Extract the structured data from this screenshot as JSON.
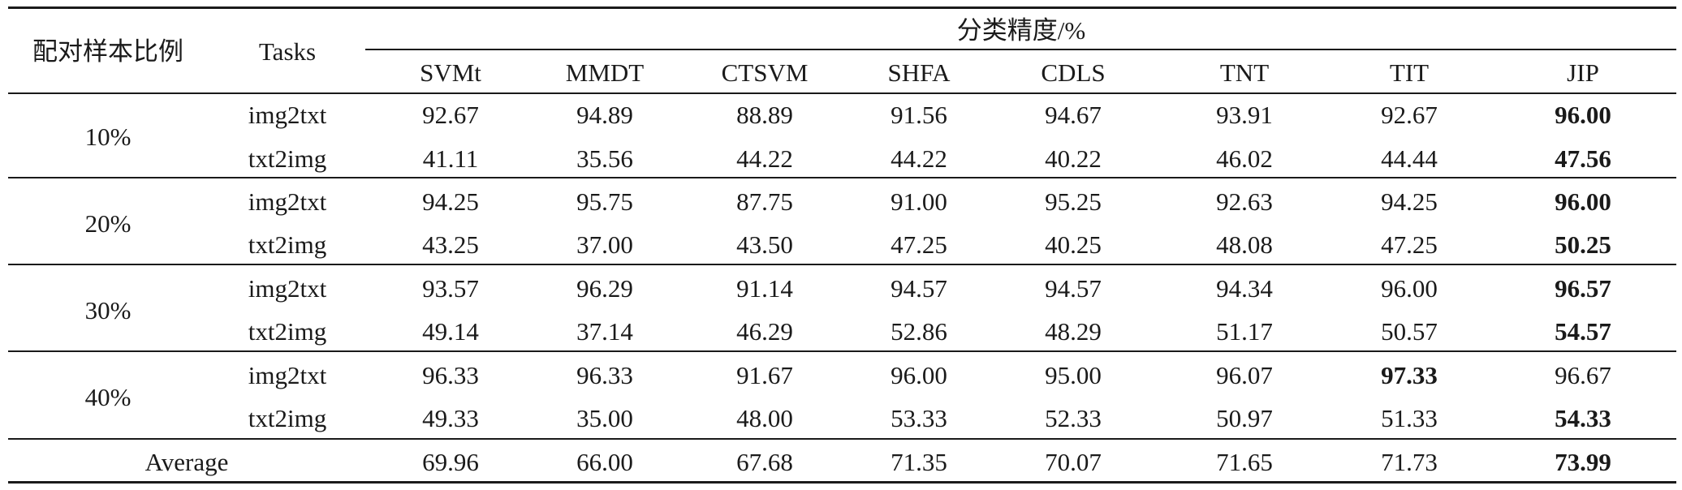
{
  "table": {
    "header": {
      "ratio": "配对样本比例",
      "tasks": "Tasks",
      "group": "分类精度/%",
      "methods": [
        "SVMt",
        "MMDT",
        "CTSVM",
        "SHFA",
        "CDLS",
        "TNT",
        "TIT",
        "JIP"
      ]
    },
    "groups": [
      {
        "ratio": "10%",
        "rows": [
          {
            "task": "img2txt",
            "values": [
              "92.67",
              "94.89",
              "88.89",
              "91.56",
              "94.67",
              "93.91",
              "92.67",
              "96.00"
            ],
            "best": [
              7
            ]
          },
          {
            "task": "txt2img",
            "values": [
              "41.11",
              "35.56",
              "44.22",
              "44.22",
              "40.22",
              "46.02",
              "44.44",
              "47.56"
            ],
            "best": [
              7
            ]
          }
        ]
      },
      {
        "ratio": "20%",
        "rows": [
          {
            "task": "img2txt",
            "values": [
              "94.25",
              "95.75",
              "87.75",
              "91.00",
              "95.25",
              "92.63",
              "94.25",
              "96.00"
            ],
            "best": [
              7
            ]
          },
          {
            "task": "txt2img",
            "values": [
              "43.25",
              "37.00",
              "43.50",
              "47.25",
              "40.25",
              "48.08",
              "47.25",
              "50.25"
            ],
            "best": [
              7
            ]
          }
        ]
      },
      {
        "ratio": "30%",
        "rows": [
          {
            "task": "img2txt",
            "values": [
              "93.57",
              "96.29",
              "91.14",
              "94.57",
              "94.57",
              "94.34",
              "96.00",
              "96.57"
            ],
            "best": [
              7
            ]
          },
          {
            "task": "txt2img",
            "values": [
              "49.14",
              "37.14",
              "46.29",
              "52.86",
              "48.29",
              "51.17",
              "50.57",
              "54.57"
            ],
            "best": [
              7
            ]
          }
        ]
      },
      {
        "ratio": "40%",
        "rows": [
          {
            "task": "img2txt",
            "values": [
              "96.33",
              "96.33",
              "91.67",
              "96.00",
              "95.00",
              "96.07",
              "97.33",
              "96.67"
            ],
            "best": [
              6
            ]
          },
          {
            "task": "txt2img",
            "values": [
              "49.33",
              "35.00",
              "48.00",
              "53.33",
              "52.33",
              "50.97",
              "51.33",
              "54.33"
            ],
            "best": [
              7
            ]
          }
        ]
      }
    ],
    "average": {
      "label": "Average",
      "values": [
        "69.96",
        "66.00",
        "67.68",
        "71.35",
        "70.07",
        "71.65",
        "71.73",
        "73.99"
      ],
      "best": [
        7
      ]
    }
  }
}
